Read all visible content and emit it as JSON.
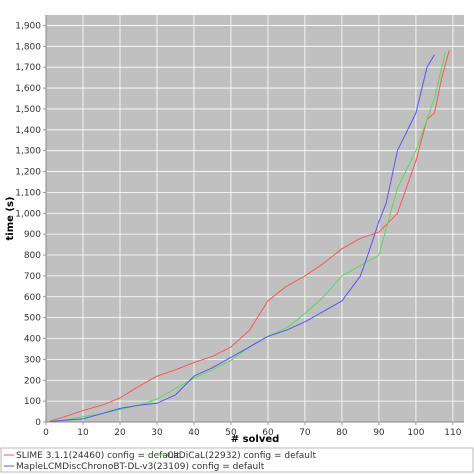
{
  "chart_data": {
    "type": "line",
    "xlabel": "# solved",
    "ylabel": "time (s)",
    "xlim": [
      0,
      113
    ],
    "ylim": [
      0,
      1950
    ],
    "xticks": [
      "0",
      "10",
      "20",
      "30",
      "40",
      "50",
      "60",
      "70",
      "80",
      "90",
      "100",
      "110"
    ],
    "yticks": [
      "0",
      "100",
      "200",
      "300",
      "400",
      "500",
      "600",
      "700",
      "800",
      "900",
      "1,000",
      "1,100",
      "1,200",
      "1,300",
      "1,400",
      "1,500",
      "1,600",
      "1,700",
      "1,800",
      "1,900"
    ],
    "grid": true,
    "legend_position": "bottom",
    "colors": {
      "plot_background": "#c0c0c0",
      "grid": "#ffffff"
    },
    "series": [
      {
        "name": "SLIME 3.1.1(24460) config = default",
        "color": "#ff5555",
        "x": [
          1,
          5,
          10,
          15,
          20,
          25,
          30,
          35,
          40,
          45,
          50,
          55,
          60,
          65,
          70,
          75,
          80,
          85,
          90,
          95,
          100,
          103,
          105,
          107,
          109
        ],
        "y": [
          5,
          25,
          55,
          80,
          115,
          170,
          220,
          250,
          285,
          315,
          360,
          440,
          580,
          650,
          700,
          760,
          830,
          880,
          910,
          1000,
          1250,
          1450,
          1480,
          1650,
          1780
        ]
      },
      {
        "name": "CaDiCaL(22932) config = default",
        "color": "#55dd55",
        "x": [
          1,
          5,
          10,
          15,
          20,
          25,
          30,
          35,
          40,
          45,
          50,
          55,
          60,
          65,
          70,
          75,
          80,
          85,
          90,
          95,
          100,
          103,
          105,
          107,
          108
        ],
        "y": [
          3,
          10,
          25,
          40,
          60,
          80,
          110,
          160,
          210,
          250,
          295,
          360,
          410,
          450,
          520,
          600,
          700,
          750,
          800,
          1120,
          1300,
          1450,
          1550,
          1700,
          1770
        ]
      },
      {
        "name": "MapleLCMDiscChronoBT-DL-v3(23109) config = default",
        "color": "#5555ff",
        "x": [
          1,
          5,
          10,
          15,
          20,
          25,
          30,
          35,
          40,
          45,
          50,
          55,
          60,
          65,
          70,
          75,
          80,
          85,
          87,
          90,
          92,
          95,
          100,
          103,
          105
        ],
        "y": [
          2,
          8,
          15,
          40,
          65,
          80,
          90,
          130,
          220,
          260,
          310,
          360,
          410,
          440,
          480,
          530,
          580,
          700,
          800,
          960,
          1050,
          1300,
          1480,
          1700,
          1760
        ]
      }
    ]
  }
}
